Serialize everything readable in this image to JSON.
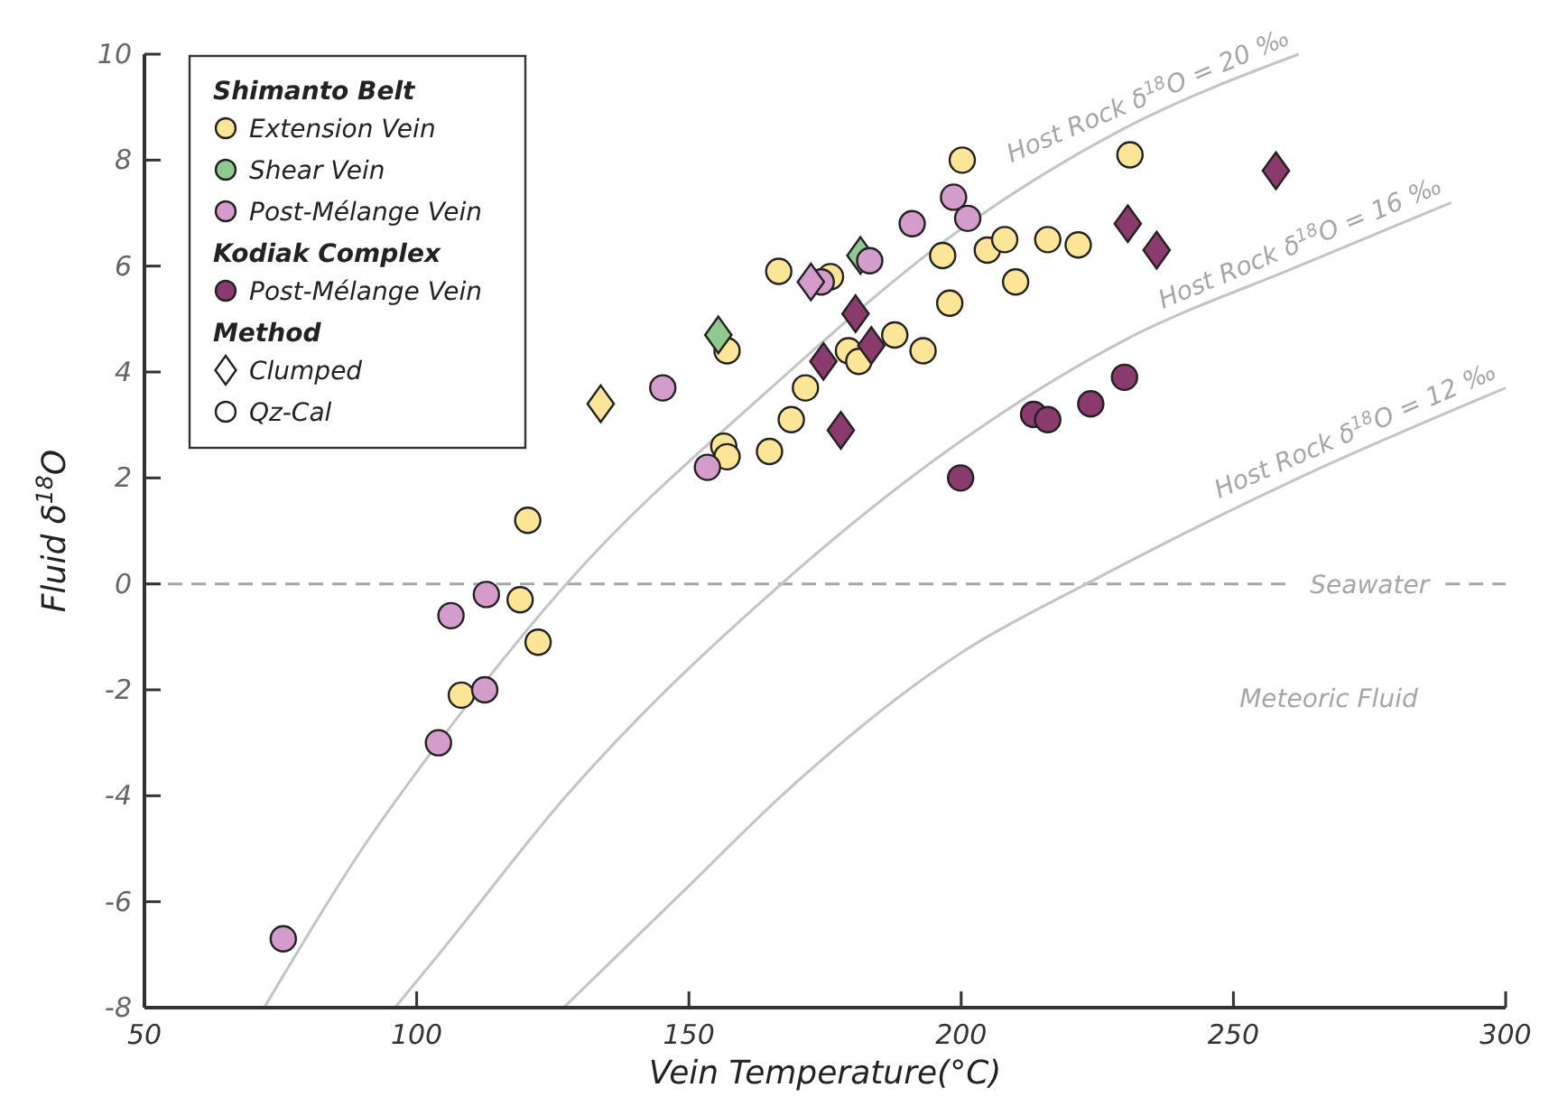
{
  "chart_data": {
    "type": "scatter",
    "xlabel": "Vein Temperature(°C)",
    "ylabel": "Fluid δ$^{18}$O",
    "xlim": [
      50,
      300
    ],
    "ylim": [
      -8,
      10
    ],
    "xticks": [
      50,
      100,
      150,
      200,
      250,
      300
    ],
    "yticks": [
      -8,
      -6,
      -4,
      -2,
      0,
      2,
      4,
      6,
      8,
      10
    ],
    "grid": false,
    "legend": "top left",
    "legend_title": "Shimanto Belt",
    "ref_lines": [
      {
        "axis": "y",
        "value": 0,
        "label": "Seawater",
        "color": "#a6a6a6",
        "line_style": "dashed"
      }
    ],
    "annotations": [
      "Kodiak Complex",
      "Method",
      "Meteoric Fluid"
    ],
    "series": [
      {
        "name": "Extension Vein",
        "color": "#fde597",
        "marker": "circle",
        "x": [
          120.4,
          119,
          122.3,
          108.2,
          156.4,
          157,
          157,
          164.8,
          166.5,
          176,
          179.3,
          181.2,
          171.4,
          168.8,
          187.8,
          193,
          197.9,
          196.6,
          200.2,
          204.8,
          208,
          210,
          215.9,
          221.5,
          231
        ],
        "values": [
          1.2,
          -0.3,
          -1.1,
          -2.1,
          2.6,
          2.4,
          4.4,
          2.5,
          5.9,
          5.8,
          4.4,
          4.2,
          3.7,
          3.1,
          4.7,
          4.4,
          5.3,
          6.2,
          8.0,
          6.3,
          6.5,
          5.7,
          6.5,
          6.4,
          8.1
        ]
      },
      {
        "name": "Shear Vein",
        "color": "#8fc98f",
        "marker": "diamond",
        "x": [
          155.4,
          181.5
        ],
        "values": [
          4.7,
          6.2
        ]
      },
      {
        "name": "Post-Mélange Vein",
        "color": "#d39ccb",
        "marker": "circle",
        "x": [
          75.5,
          104,
          112.5,
          106.3,
          112.8,
          145.2,
          153.4,
          174.3,
          183.2,
          191,
          198.6,
          201.2
        ],
        "values": [
          -6.7,
          -3.0,
          -2.0,
          -0.6,
          -0.2,
          3.7,
          2.2,
          5.7,
          6.1,
          6.8,
          7.3,
          6.9
        ]
      },
      {
        "name": "Post-Mélange Vein",
        "color": "#8b3a6e",
        "marker": "circle",
        "x": [
          213.3,
          215.9,
          223.8,
          230,
          199.9
        ],
        "values": [
          3.2,
          3.1,
          3.4,
          3.9,
          2.0
        ]
      },
      {
        "name": "Clumped",
        "color": "#ffffff",
        "marker": "diamond"
      },
      {
        "name": "Qz-Cal",
        "color": "#ffffff",
        "marker": "circle"
      },
      {
        "color": "#fde597",
        "marker": "diamond",
        "x": [
          133.8
        ],
        "values": [
          3.4
        ]
      },
      {
        "color": "#d39ccb",
        "marker": "diamond",
        "x": [
          172.4
        ],
        "values": [
          5.7
        ]
      },
      {
        "color": "#8b3a6e",
        "marker": "diamond",
        "x": [
          180.6,
          174.7,
          183.5,
          177.9,
          230.6,
          235.9,
          257.8
        ],
        "values": [
          5.1,
          4.2,
          4.5,
          2.9,
          6.8,
          6.3,
          7.8
        ]
      },
      {
        "type": "line",
        "name": "Host Rock δ$^{18}$O = 20 ‰",
        "color": "#c4c4c4",
        "marker": "none",
        "x": [
          72,
          90,
          104,
          127.5,
          164,
          200,
          230,
          262
        ],
        "values": [
          -8,
          -5,
          -3,
          0,
          3.6,
          6.7,
          8.6,
          10
        ]
      },
      {
        "type": "line",
        "name": "Host Rock δ$^{18}$O = 16 ‰",
        "color": "#c4c4c4",
        "marker": "none",
        "x": [
          96,
          104,
          127.5,
          167,
          200,
          230,
          262,
          290
        ],
        "values": [
          -8,
          -7,
          -4,
          0,
          2.7,
          4.6,
          6,
          7.2
        ]
      },
      {
        "type": "line",
        "name": "Host Rock δ$^{18}$O = 12 ‰",
        "color": "#c4c4c4",
        "marker": "none",
        "x": [
          127,
          150,
          167,
          200,
          223,
          262,
          300
        ],
        "values": [
          -8,
          -5.7,
          -4,
          -1.3,
          0,
          2,
          3.7
        ]
      }
    ]
  }
}
